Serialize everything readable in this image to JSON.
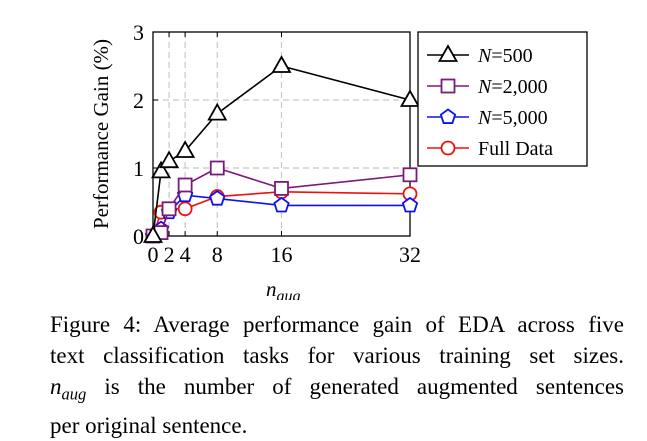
{
  "chart_data": {
    "type": "line",
    "title": "",
    "xlabel": "n_aug",
    "xlabel_base": "n",
    "xlabel_sub": "aug",
    "ylabel": "Performance Gain (%)",
    "xlim": [
      0,
      32
    ],
    "ylim": [
      0,
      3
    ],
    "x_ticks": [
      0,
      2,
      4,
      8,
      16,
      32
    ],
    "y_ticks": [
      0,
      1,
      2,
      3
    ],
    "grid": true,
    "legend_position": "top-right",
    "x": [
      0,
      1,
      2,
      4,
      8,
      16,
      32
    ],
    "series": [
      {
        "name": "N=500",
        "var": "N",
        "num": "500",
        "marker": "triangle",
        "color": "#000000",
        "values": [
          0.0,
          0.95,
          1.1,
          1.25,
          1.8,
          2.5,
          2.0
        ]
      },
      {
        "name": "N=2,000",
        "var": "N",
        "num": "2,000",
        "marker": "square",
        "color": "#7b1a7b",
        "values": [
          0.0,
          0.05,
          0.4,
          0.75,
          1.0,
          0.7,
          0.9
        ]
      },
      {
        "name": "N=5,000",
        "var": "N",
        "num": "5,000",
        "marker": "pentagon",
        "color": "#1010ee",
        "values": [
          0.0,
          0.1,
          0.35,
          0.6,
          0.55,
          0.45,
          0.45
        ]
      },
      {
        "name": "Full Data",
        "var": "",
        "num": "",
        "marker": "circle",
        "color": "#ee1010",
        "values": [
          0.0,
          0.35,
          0.4,
          0.4,
          0.58,
          0.65,
          0.62
        ]
      }
    ]
  },
  "caption": {
    "line1": "Figure 4: Average performance gain of EDA across five",
    "line2": "text classification tasks for various training set sizes.",
    "line3_var": "n",
    "line3_sub": "aug",
    "line3_rest": " is the number of generated augmented sentences",
    "line4": "per original sentence."
  }
}
